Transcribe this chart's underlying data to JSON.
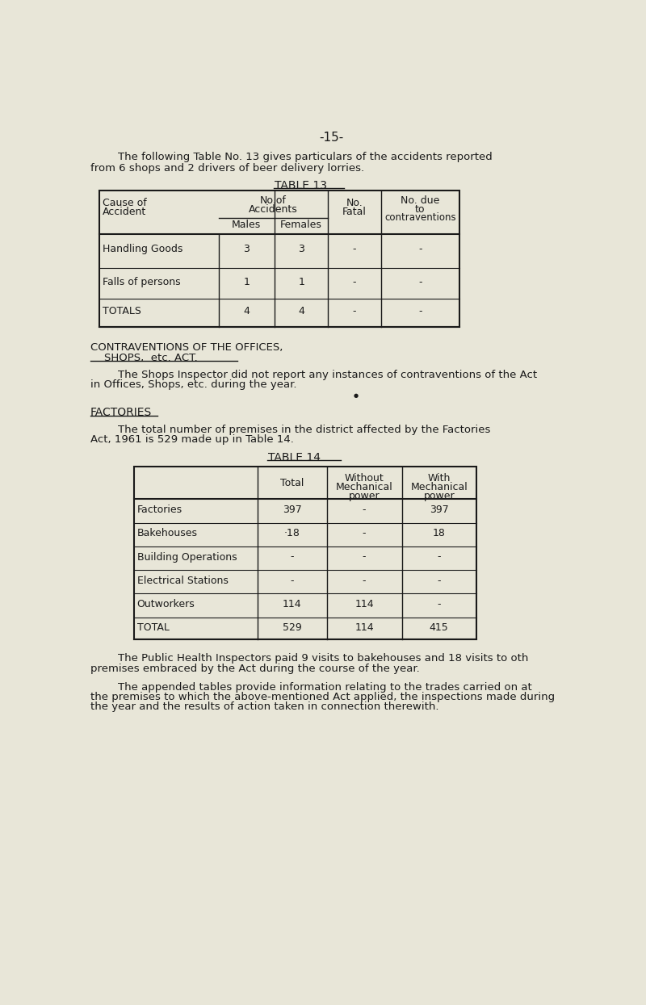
{
  "bg_color": "#e8e6d8",
  "text_color": "#1a1a1a",
  "page_number": "-15-",
  "intro_text1": "The following Table No. 13 gives particulars of the accidents reported",
  "intro_text2": "from 6 shops and 2 drivers of beer delivery lorries.",
  "table13_title": "TABLE 13",
  "table13_rows": [
    [
      "Handling Goods",
      "3",
      "3",
      "-",
      "-"
    ],
    [
      "Falls of persons",
      "1",
      "1",
      "-",
      "-"
    ],
    [
      "TOTALS",
      "4",
      "4",
      "-",
      "-"
    ]
  ],
  "section_heading1": "CONTRAVENTIONS OF THE OFFICES,",
  "section_heading2": "    SHOPS,  etc. ACT.",
  "paragraph1": "        The Shops Inspector did not report any instances of contraventions of the Act",
  "paragraph2": "in Offices, Shops, etc. during the year.",
  "factories_heading": "FACTORIES",
  "factories_para1": "        The total number of premises in the district affected by the Factories",
  "factories_para2": "Act, 1961 is 529 made up in Table 14.",
  "table14_title": "TABLE 14",
  "table14_rows": [
    [
      "Factories",
      "397",
      "-",
      "397"
    ],
    [
      "Bakehouses",
      "·18",
      "-",
      "18"
    ],
    [
      "Building Operations",
      "-",
      "-",
      "-"
    ],
    [
      "Electrical Stations",
      "-",
      "-",
      "-"
    ],
    [
      "Outworkers",
      "114",
      "114",
      "-"
    ],
    [
      "TOTAL",
      "529",
      "114",
      "415"
    ]
  ],
  "footer_para1": "        The Public Health Inspectors paid 9 visits to bakehouses and 18 visits to oth",
  "footer_para2": "premises embraced by the Act during the course of the year.",
  "footer_para3": "        The appended tables provide information relating to the trades carried on at",
  "footer_para4": "the premises to which the above-mentioned Act applied, the inspections made during",
  "footer_para5": "the year and the results of action taken in connection therewith."
}
